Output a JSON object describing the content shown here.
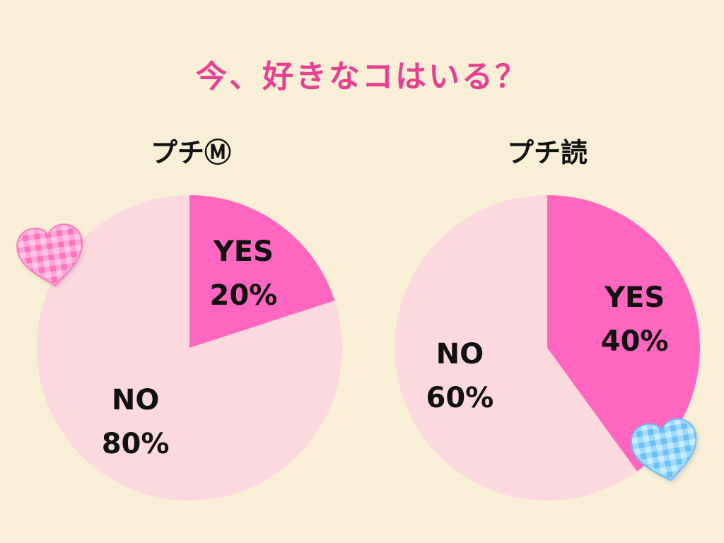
{
  "title": "今、好きなコはいる？",
  "charts": [
    {
      "title": "プチⓂ",
      "type": "pie",
      "slices": [
        {
          "label": "YES",
          "value": 20,
          "display": "20%",
          "color": "#ff66bf"
        },
        {
          "label": "NO",
          "value": 80,
          "display": "80%",
          "color": "#fbd9df"
        }
      ]
    },
    {
      "title": "プチ読",
      "type": "pie",
      "slices": [
        {
          "label": "YES",
          "value": 40,
          "display": "40%",
          "color": "#ff66bf"
        },
        {
          "label": "NO",
          "value": 60,
          "display": "60%",
          "color": "#fbd9df"
        }
      ]
    }
  ],
  "chart_data": [
    {
      "type": "pie",
      "title": "プチⓂ",
      "categories": [
        "YES",
        "NO"
      ],
      "values": [
        20,
        80
      ]
    },
    {
      "type": "pie",
      "title": "プチ読",
      "categories": [
        "YES",
        "NO"
      ],
      "values": [
        40,
        60
      ]
    }
  ],
  "decorations": [
    {
      "name": "heart-icon",
      "pattern": "pink-gingham",
      "color": "#ff9fd1"
    },
    {
      "name": "heart-icon",
      "pattern": "blue-gingham",
      "color": "#8fd0ff"
    }
  ]
}
